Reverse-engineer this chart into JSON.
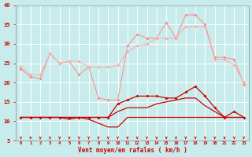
{
  "x": [
    0,
    1,
    2,
    3,
    4,
    5,
    6,
    7,
    8,
    9,
    10,
    11,
    12,
    13,
    14,
    15,
    16,
    17,
    18,
    19,
    20,
    21,
    22,
    23
  ],
  "line_rafale1": [
    23.5,
    21.5,
    21.0,
    27.5,
    25.0,
    25.5,
    22.0,
    24.0,
    16.0,
    15.5,
    15.5,
    29.5,
    32.5,
    31.5,
    31.5,
    35.5,
    31.5,
    37.5,
    37.5,
    35.0,
    26.5,
    26.5,
    26.0,
    19.5
  ],
  "line_rafale2": [
    24.0,
    22.0,
    22.0,
    27.5,
    25.0,
    25.5,
    25.5,
    24.0,
    24.0,
    24.0,
    24.5,
    28.0,
    29.5,
    30.0,
    31.5,
    31.5,
    31.5,
    34.5,
    34.5,
    34.5,
    26.0,
    26.0,
    24.5,
    20.0
  ],
  "line_moy1": [
    11.0,
    11.0,
    11.0,
    11.0,
    11.0,
    10.5,
    11.0,
    10.5,
    9.5,
    8.5,
    8.5,
    11.0,
    11.0,
    11.0,
    11.0,
    11.0,
    11.0,
    11.0,
    11.0,
    11.0,
    11.0,
    11.0,
    11.0,
    11.0
  ],
  "line_moy2": [
    11.0,
    11.0,
    11.0,
    11.0,
    11.0,
    11.0,
    11.0,
    11.0,
    11.0,
    11.0,
    14.5,
    15.5,
    16.5,
    16.5,
    16.5,
    16.0,
    16.0,
    17.5,
    19.0,
    16.5,
    13.5,
    11.0,
    12.5,
    11.0
  ],
  "line_moy3": [
    11.0,
    11.0,
    11.0,
    11.0,
    11.0,
    11.0,
    11.0,
    11.0,
    11.0,
    11.0,
    12.5,
    13.5,
    13.5,
    13.5,
    14.5,
    15.0,
    15.5,
    16.0,
    16.0,
    14.0,
    12.5,
    11.0,
    11.0,
    11.0
  ],
  "bg_color": "#c8ecec",
  "grid_color": "#aadddd",
  "line_rafale_color1": "#ff8888",
  "line_rafale_color2": "#ffaaaa",
  "line_moy_color": "#cc0000",
  "xlabel": "Vent moyen/en rafales ( km/h )",
  "xlabel_color": "#cc0000",
  "tick_color": "#cc0000",
  "ylim": [
    5,
    40
  ],
  "xlim": [
    -0.5,
    23.5
  ],
  "yticks": [
    5,
    10,
    15,
    20,
    25,
    30,
    35,
    40
  ]
}
